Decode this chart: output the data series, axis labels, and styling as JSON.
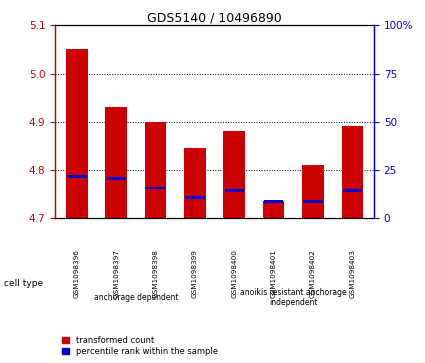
{
  "title": "GDS5140 / 10496890",
  "samples": [
    "GSM1098396",
    "GSM1098397",
    "GSM1098398",
    "GSM1098399",
    "GSM1098400",
    "GSM1098401",
    "GSM1098402",
    "GSM1098403"
  ],
  "red_values": [
    5.05,
    4.93,
    4.9,
    4.845,
    4.88,
    4.735,
    4.81,
    4.89
  ],
  "blue_values": [
    4.785,
    4.782,
    4.762,
    4.742,
    4.757,
    4.733,
    4.734,
    4.757
  ],
  "ylim": [
    4.7,
    5.1
  ],
  "yticks_left": [
    4.7,
    4.8,
    4.9,
    5.0,
    5.1
  ],
  "yticks_right": [
    0,
    25,
    50,
    75,
    100
  ],
  "left_color": "#cc0000",
  "right_color": "#0000cc",
  "bar_color": "#cc0000",
  "blue_color": "#0000cc",
  "bar_width": 0.55,
  "group1_label": "anchorage dependent",
  "group2_label": "anoikis resistant anchorage\nindependent",
  "group1_indices": [
    0,
    1,
    2,
    3
  ],
  "group2_indices": [
    4,
    5,
    6,
    7
  ],
  "group_color": "#bbffbb",
  "cell_type_label": "cell type",
  "legend_red": "transformed count",
  "legend_blue": "percentile rank within the sample",
  "tick_bg": "#cccccc"
}
